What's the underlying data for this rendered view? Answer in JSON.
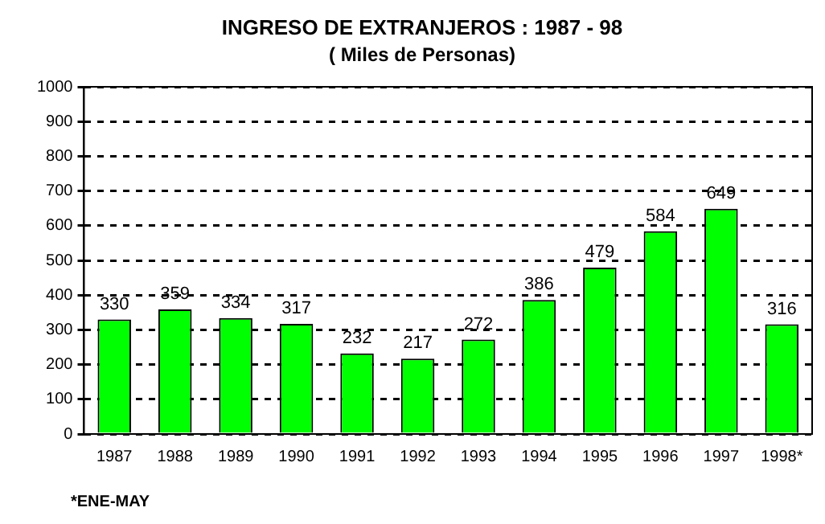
{
  "chart_data": {
    "type": "bar",
    "title": "INGRESO DE EXTRANJEROS : 1987 - 98",
    "subtitle": "( Miles de Personas)",
    "categories": [
      "1987",
      "1988",
      "1989",
      "1990",
      "1991",
      "1992",
      "1993",
      "1994",
      "1995",
      "1996",
      "1997",
      "1998*"
    ],
    "values": [
      330,
      359,
      334,
      317,
      232,
      217,
      272,
      386,
      479,
      584,
      649,
      316
    ],
    "color": "#00ff00",
    "ylim": [
      0,
      1000
    ],
    "yticks": [
      0,
      100,
      200,
      300,
      400,
      500,
      600,
      700,
      800,
      900,
      1000
    ],
    "grid": "y",
    "data_labels": true,
    "annotations": [
      "*ENE-MAY"
    ]
  }
}
